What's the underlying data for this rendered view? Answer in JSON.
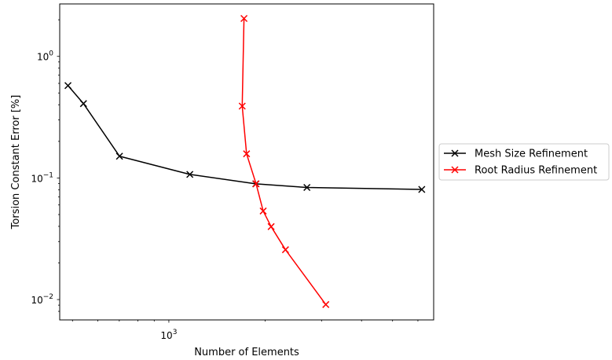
{
  "chart_data": {
    "type": "line",
    "xscale": "log",
    "yscale": "log",
    "xlabel": "Number of Elements",
    "ylabel": "Torsion Constant Error [%]",
    "xlim": [
      456,
      6720
    ],
    "ylim": [
      0.0068,
      2.7
    ],
    "x_major_ticks": [
      {
        "value": 1000,
        "label": "10",
        "exp": "3"
      }
    ],
    "x_minor_ticks": [
      500,
      600,
      700,
      800,
      900,
      2000,
      3000,
      4000,
      5000,
      6000
    ],
    "y_major_ticks": [
      {
        "value": 1,
        "label": "10",
        "exp": "0"
      },
      {
        "value": 0.1,
        "label": "10",
        "exp": "−1"
      },
      {
        "value": 0.01,
        "label": "10",
        "exp": "−2"
      }
    ],
    "y_minor_ticks": [
      0.008,
      0.009,
      0.02,
      0.03,
      0.04,
      0.05,
      0.06,
      0.07,
      0.08,
      0.09,
      0.2,
      0.3,
      0.4,
      0.5,
      0.6,
      0.7,
      0.8,
      0.9,
      2
    ],
    "series": [
      {
        "name": "Mesh Size Refinement",
        "color": "#000000",
        "marker": "x",
        "x": [
          484,
          541,
          701,
          1163,
          1869,
          2700,
          6169
        ],
        "y": [
          0.575,
          0.409,
          0.151,
          0.107,
          0.0895,
          0.0835,
          0.0805
        ]
      },
      {
        "name": "Root Radius Refinement",
        "color": "#ff0000",
        "marker": "x",
        "x": [
          1717,
          1695,
          1749,
          1873,
          1971,
          2087,
          2314,
          3093
        ],
        "y": [
          2.05,
          0.39,
          0.158,
          0.0895,
          0.0535,
          0.0398,
          0.0257,
          0.0091
        ]
      }
    ],
    "legend": {
      "placement": "outside-right"
    },
    "grid": false
  }
}
